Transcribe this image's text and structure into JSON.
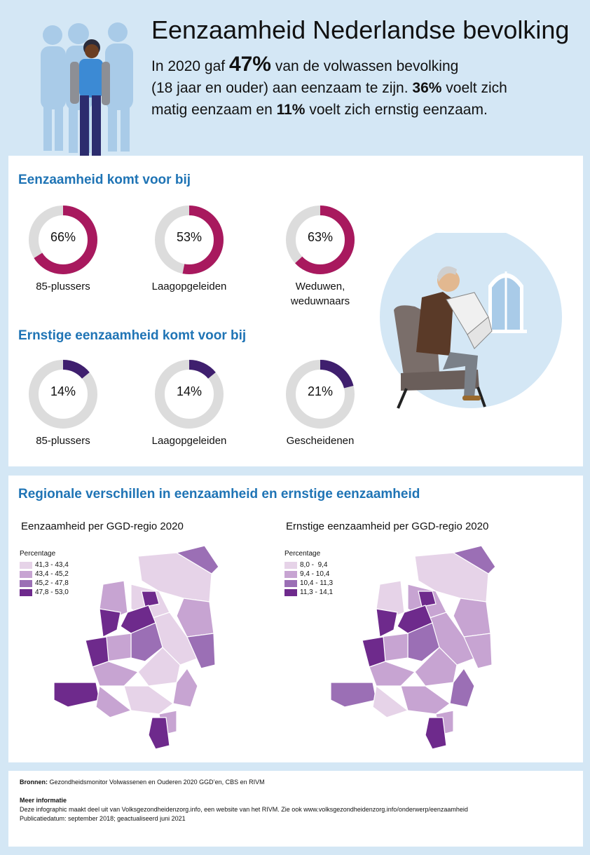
{
  "header": {
    "title": "Eenzaamheid Nederlandse bevolking",
    "intro_part1": "In 2020 gaf ",
    "intro_pct": "47%",
    "intro_part2": " van de volwassen bevolking",
    "intro_line2a": "(18 jaar en ouder) aan eenzaam te zijn. ",
    "intro_pct2": "36%",
    "intro_line2b": " voelt zich",
    "intro_line3a": "matig eenzaam en ",
    "intro_pct3": "11%",
    "intro_line3b": " voelt zich ernstig eenzaam."
  },
  "section1": {
    "title": "Eenzaamheid komt voor bij",
    "items": [
      {
        "value": "66%",
        "fraction": 0.66,
        "label": "85-plussers"
      },
      {
        "value": "53%",
        "fraction": 0.53,
        "label": "Laagopgeleiden"
      },
      {
        "value": "63%",
        "fraction": 0.63,
        "label": "Weduwen, weduwnaars"
      }
    ]
  },
  "section2": {
    "title": "Ernstige eenzaamheid komt voor bij",
    "items": [
      {
        "value": "14%",
        "fraction": 0.14,
        "label": "85-plussers"
      },
      {
        "value": "14%",
        "fraction": 0.14,
        "label": "Laagopgeleiden"
      },
      {
        "value": "21%",
        "fraction": 0.21,
        "label": "Gescheidenen"
      }
    ]
  },
  "regional": {
    "title": "Regionale verschillen in eenzaamheid en ernstige eenzaamheid",
    "map1": {
      "title": "Eenzaamheid per GGD-regio 2020",
      "legend_title": "Percentage",
      "legend": [
        "41,3 - 43,4",
        "43,4 - 45,2",
        "45,2 - 47,8",
        "47,8 - 53,0"
      ]
    },
    "map2": {
      "title": "Ernstige eenzaamheid per GGD-regio 2020",
      "legend_title": "Percentage",
      "legend": [
        "8,0 -  9,4",
        "9,4 - 10,4",
        "10,4 - 11,3",
        "11,3 - 14,1"
      ]
    }
  },
  "colors": {
    "ring_bg": "#dcdcdc",
    "ring_eenzaam": "#a8195e",
    "ring_ernstig": "#3f1f6e",
    "legend": [
      "#e6d3e8",
      "#c7a4d2",
      "#9b6fb5",
      "#6e2a8c"
    ],
    "title_blue": "#1f74b5"
  },
  "footer": {
    "sources_label": "Bronnen:",
    "sources_text": " Gezondheidsmonitor Volwassenen en Ouderen 2020 GGD’en, CBS en RIVM",
    "more_label": "Meer informatie",
    "more_line1": "Deze infographic maakt deel uit van Volksgezondheidenzorg.info, een website van het RIVM. Zie ook www.volksgezondheidenzorg.info/onderwerp/eenzaamheid",
    "more_line2": "Publicatiedatum: september 2018; geactualiseerd juni 2021"
  }
}
